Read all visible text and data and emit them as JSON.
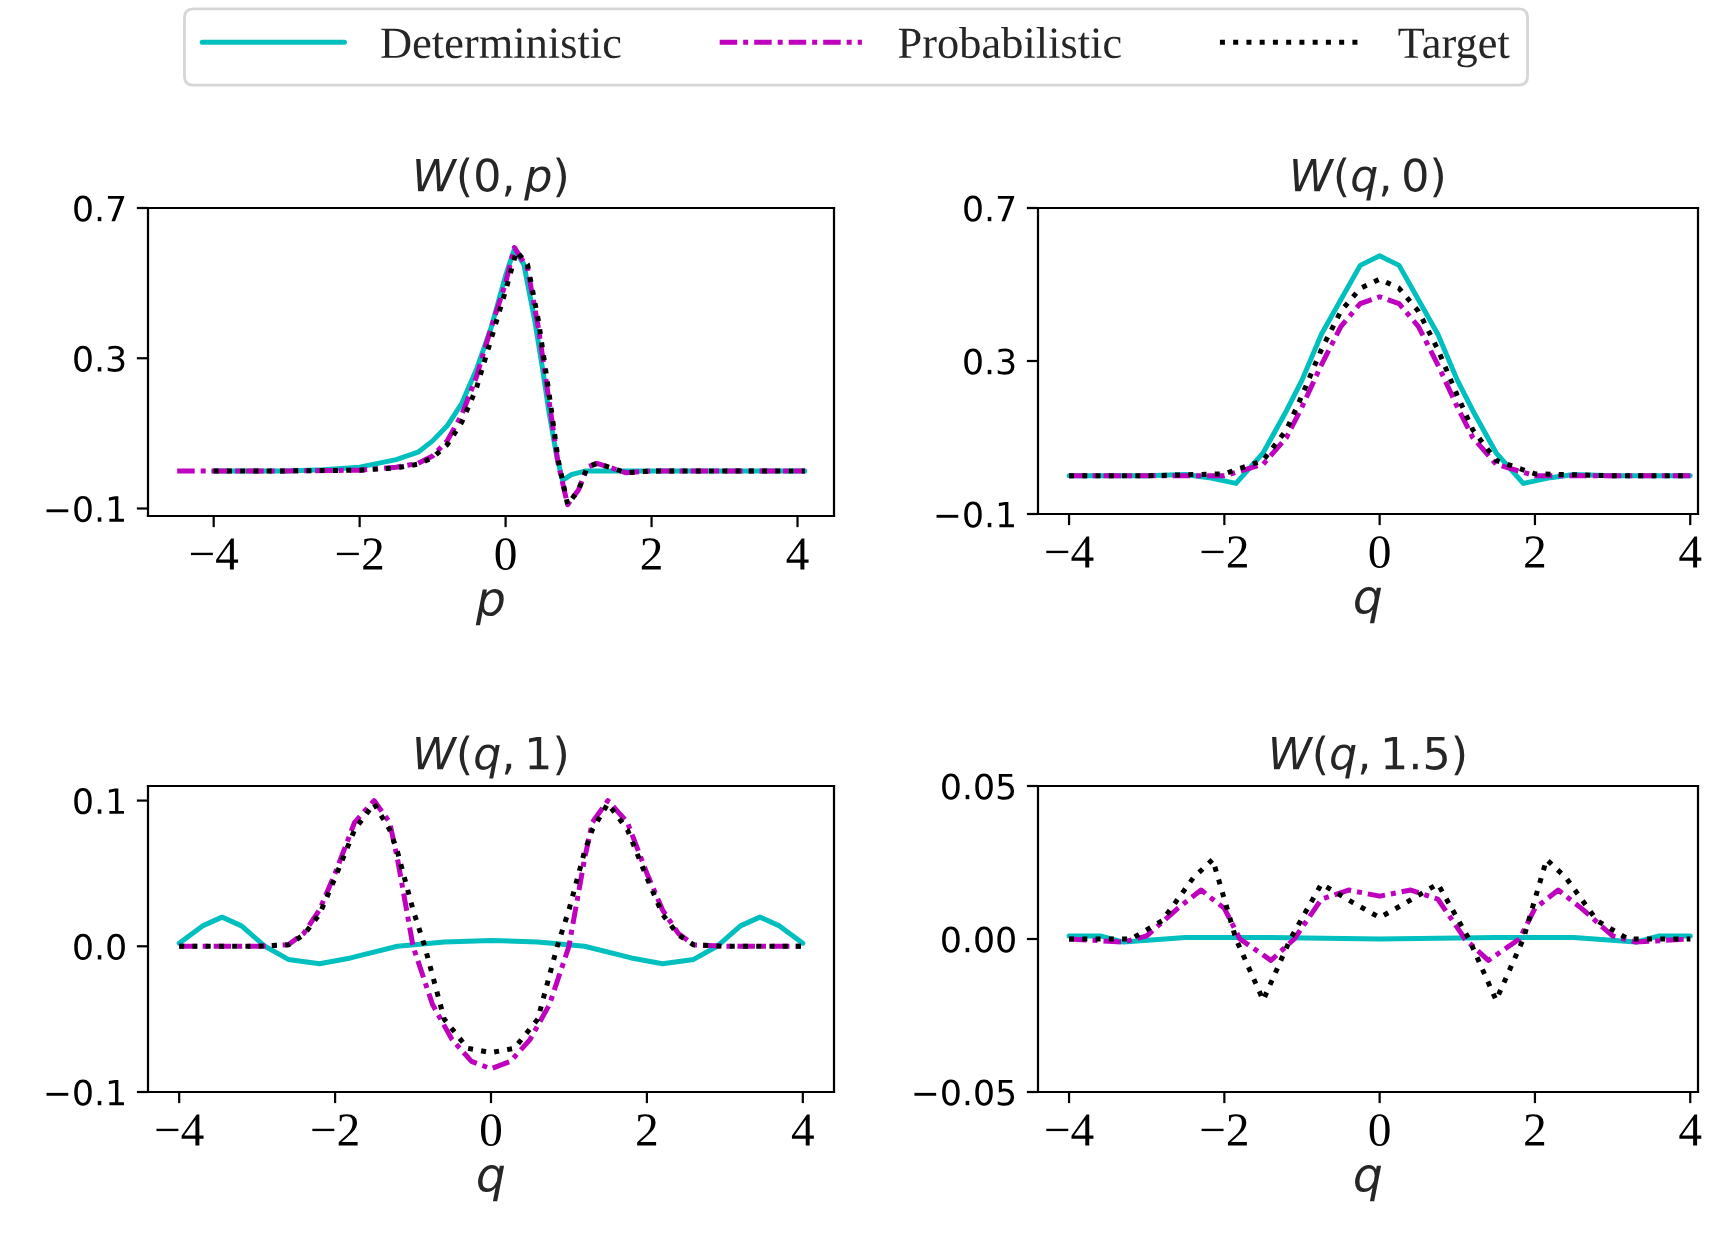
{
  "chart_data": [
    {
      "type": "line",
      "title": "W(0,p)",
      "xlabel": "p",
      "legend": "top",
      "xlim": [
        -4.9,
        4.5
      ],
      "ylim": [
        -0.12,
        0.7
      ],
      "xticks": [
        -4,
        -2,
        0,
        2,
        4
      ],
      "yticks": [
        -0.1,
        0.3,
        0.7
      ],
      "series": [
        {
          "name": "Deterministic",
          "color": "#00bfbf",
          "line_style": "solid",
          "x": [
            -4,
            -3,
            -2.5,
            -2,
            -1.5,
            -1.2,
            -1,
            -0.8,
            -0.6,
            -0.4,
            -0.2,
            0,
            0.12,
            0.25,
            0.4,
            0.5,
            0.6,
            0.7,
            0.78,
            0.9,
            1.1,
            1.5,
            2,
            3,
            4.1
          ],
          "values": [
            0,
            0,
            0.003,
            0.01,
            0.03,
            0.05,
            0.08,
            0.12,
            0.18,
            0.27,
            0.38,
            0.52,
            0.59,
            0.55,
            0.4,
            0.28,
            0.15,
            0.04,
            -0.025,
            -0.01,
            0,
            0,
            0,
            0,
            0
          ]
        },
        {
          "name": "Probabilistic",
          "color": "#bf00bf",
          "line_style": "dashdot",
          "x": [
            -4.5,
            -3,
            -2,
            -1.5,
            -1.2,
            -1,
            -0.8,
            -0.6,
            -0.4,
            -0.2,
            0,
            0.12,
            0.3,
            0.45,
            0.6,
            0.72,
            0.85,
            1,
            1.12,
            1.25,
            1.45,
            1.65,
            2,
            3,
            4.1
          ],
          "values": [
            0,
            0,
            0.002,
            0.01,
            0.02,
            0.04,
            0.08,
            0.15,
            0.25,
            0.38,
            0.5,
            0.595,
            0.54,
            0.38,
            0.18,
            0.02,
            -0.09,
            -0.05,
            0.01,
            0.02,
            0.008,
            -0.005,
            0,
            0,
            0
          ]
        },
        {
          "name": "Target",
          "color": "#000000",
          "line_style": "dotted",
          "x": [
            -4,
            -3,
            -2,
            -1.5,
            -1.2,
            -1,
            -0.8,
            -0.6,
            -0.4,
            -0.2,
            0,
            0.15,
            0.3,
            0.45,
            0.6,
            0.72,
            0.85,
            1,
            1.12,
            1.25,
            1.45,
            1.65,
            2,
            3,
            4.1
          ],
          "values": [
            0,
            0,
            0.002,
            0.008,
            0.018,
            0.035,
            0.07,
            0.13,
            0.22,
            0.35,
            0.48,
            0.585,
            0.55,
            0.4,
            0.2,
            0.03,
            -0.09,
            -0.05,
            0.01,
            0.02,
            0.008,
            -0.005,
            0,
            0,
            0
          ]
        }
      ]
    },
    {
      "type": "line",
      "title": "W(q,0)",
      "xlabel": "q",
      "xlim": [
        -4.4,
        4.1
      ],
      "ylim": [
        -0.1,
        0.7
      ],
      "xticks": [
        -4,
        -2,
        0,
        2,
        4
      ],
      "yticks": [
        -0.1,
        0.3,
        0.7
      ],
      "series": [
        {
          "color": "#00bfbf",
          "line_style": "solid",
          "x": [
            -4,
            -3,
            -2.5,
            -2.2,
            -1.85,
            -1.5,
            -1.2,
            -1,
            -0.75,
            -0.5,
            -0.25,
            0,
            0.25,
            0.5,
            0.75,
            1,
            1.2,
            1.5,
            1.85,
            2.2,
            2.5,
            3,
            4
          ],
          "values": [
            0,
            0,
            0.003,
            -0.005,
            -0.02,
            0.06,
            0.17,
            0.25,
            0.37,
            0.46,
            0.55,
            0.575,
            0.55,
            0.46,
            0.37,
            0.25,
            0.17,
            0.06,
            -0.02,
            -0.005,
            0.003,
            0,
            0
          ]
        },
        {
          "color": "#bf00bf",
          "line_style": "dashdot",
          "x": [
            -4,
            -3,
            -2,
            -1.5,
            -1.2,
            -1,
            -0.75,
            -0.5,
            -0.25,
            0,
            0.25,
            0.5,
            0.75,
            1,
            1.2,
            1.5,
            2,
            3,
            4
          ],
          "values": [
            0,
            0,
            0,
            0.03,
            0.1,
            0.18,
            0.29,
            0.39,
            0.45,
            0.468,
            0.45,
            0.39,
            0.29,
            0.18,
            0.1,
            0.03,
            0,
            0,
            0
          ]
        },
        {
          "color": "#000000",
          "line_style": "dotted",
          "x": [
            -4,
            -3,
            -2,
            -1.5,
            -1.2,
            -1,
            -0.75,
            -0.5,
            -0.25,
            0,
            0.25,
            0.5,
            0.75,
            1,
            1.2,
            1.5,
            2,
            3,
            4
          ],
          "values": [
            0,
            0,
            0.005,
            0.04,
            0.12,
            0.21,
            0.33,
            0.43,
            0.49,
            0.514,
            0.49,
            0.43,
            0.33,
            0.21,
            0.12,
            0.04,
            0.005,
            0,
            0
          ]
        }
      ]
    },
    {
      "type": "line",
      "title": "W(q,1)",
      "xlabel": "q",
      "xlim": [
        -4.4,
        4.4
      ],
      "ylim": [
        -0.1,
        0.11
      ],
      "xticks": [
        -4,
        -2,
        0,
        2,
        4
      ],
      "yticks": [
        -0.1,
        {
          "value": 0,
          "label": "0.0"
        },
        0.1
      ],
      "series": [
        {
          "color": "#00bfbf",
          "line_style": "solid",
          "x": [
            -4,
            -3.7,
            -3.45,
            -3.2,
            -2.9,
            -2.6,
            -2.2,
            -1.8,
            -1.2,
            -0.6,
            0,
            0.6,
            1.2,
            1.8,
            2.2,
            2.6,
            2.9,
            3.2,
            3.45,
            3.7,
            4
          ],
          "values": [
            0.002,
            0.014,
            0.02,
            0.014,
            0,
            -0.009,
            -0.012,
            -0.008,
            0,
            0.003,
            0.004,
            0.003,
            0,
            -0.008,
            -0.012,
            -0.009,
            0,
            0.014,
            0.02,
            0.014,
            0.002
          ]
        },
        {
          "color": "#bf00bf",
          "line_style": "dashdot",
          "x": [
            -4,
            -3,
            -2.6,
            -2.4,
            -2.2,
            -2,
            -1.75,
            -1.5,
            -1.3,
            -1.2,
            -1,
            -0.75,
            -0.5,
            -0.25,
            0,
            0.25,
            0.5,
            0.75,
            1,
            1.2,
            1.3,
            1.5,
            1.75,
            2,
            2.2,
            2.4,
            2.6,
            3,
            4
          ],
          "values": [
            0,
            0,
            0.001,
            0.009,
            0.025,
            0.05,
            0.085,
            0.1,
            0.085,
            0.06,
            0,
            -0.04,
            -0.064,
            -0.079,
            -0.084,
            -0.079,
            -0.064,
            -0.04,
            0,
            0.06,
            0.085,
            0.1,
            0.085,
            0.05,
            0.025,
            0.009,
            0.001,
            0,
            0
          ]
        },
        {
          "color": "#000000",
          "line_style": "dotted",
          "x": [
            -4,
            -3,
            -2.6,
            -2.4,
            -2.2,
            -2,
            -1.75,
            -1.5,
            -1.3,
            -1.2,
            -1,
            -0.85,
            -0.6,
            -0.3,
            0,
            0.3,
            0.6,
            0.85,
            1,
            1.2,
            1.3,
            1.5,
            1.75,
            2,
            2.2,
            2.4,
            2.6,
            3,
            4
          ],
          "values": [
            0,
            0,
            0.001,
            0.008,
            0.022,
            0.047,
            0.08,
            0.098,
            0.08,
            0.065,
            0.025,
            0,
            -0.05,
            -0.07,
            -0.073,
            -0.07,
            -0.05,
            0,
            0.025,
            0.065,
            0.08,
            0.098,
            0.08,
            0.047,
            0.022,
            0.008,
            0.001,
            0,
            0
          ]
        }
      ]
    },
    {
      "type": "line",
      "title": "W(q,1.5)",
      "xlabel": "q",
      "xlim": [
        -4.4,
        4.1
      ],
      "ylim": [
        -0.05,
        0.05
      ],
      "xticks": [
        -4,
        -2,
        0,
        2,
        4
      ],
      "yticks": [
        -0.05,
        {
          "value": 0,
          "label": "0.00"
        },
        0.05
      ],
      "series": [
        {
          "color": "#00bfbf",
          "line_style": "solid",
          "x": [
            -4,
            -3.6,
            -3.3,
            -2.5,
            -1.5,
            0,
            1.5,
            2.5,
            3.3,
            3.6,
            4
          ],
          "values": [
            0.001,
            0.001,
            -0.001,
            0.0005,
            0.0005,
            0,
            0.0005,
            0.0005,
            -0.001,
            0.001,
            0.001
          ]
        },
        {
          "color": "#bf00bf",
          "line_style": "dashdot",
          "x": [
            -4,
            -3.3,
            -3,
            -2.6,
            -2.3,
            -2,
            -1.8,
            -1.4,
            -1.1,
            -0.75,
            -0.4,
            0,
            0.4,
            0.75,
            1.1,
            1.4,
            1.8,
            2,
            2.3,
            2.6,
            3,
            3.3,
            4
          ],
          "values": [
            0,
            -0.001,
            0.001,
            0.01,
            0.016,
            0.01,
            0,
            -0.007,
            0,
            0.013,
            0.016,
            0.014,
            0.016,
            0.013,
            0,
            -0.007,
            0,
            0.01,
            0.016,
            0.01,
            0.001,
            -0.001,
            0
          ]
        },
        {
          "color": "#000000",
          "line_style": "dotted",
          "x": [
            -4,
            -3.2,
            -2.8,
            -2.4,
            -2.15,
            -1.85,
            -1.5,
            -1.15,
            -0.75,
            -0.35,
            0,
            0.35,
            0.75,
            1.15,
            1.5,
            1.85,
            2.15,
            2.4,
            2.8,
            3.2,
            4
          ],
          "values": [
            0,
            0,
            0.006,
            0.02,
            0.026,
            0,
            -0.02,
            0,
            0.018,
            0.012,
            0.007,
            0.012,
            0.018,
            0,
            -0.02,
            0,
            0.026,
            0.02,
            0.006,
            0,
            0
          ]
        }
      ]
    }
  ]
}
